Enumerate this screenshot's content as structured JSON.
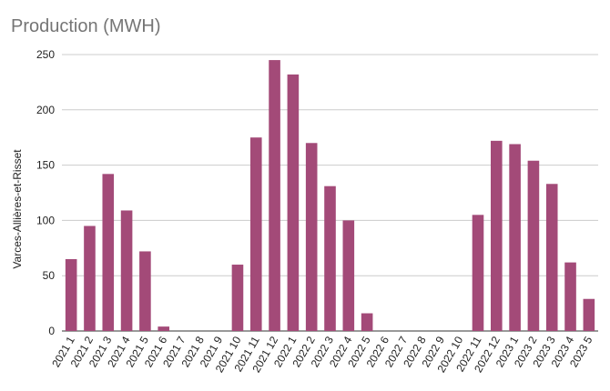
{
  "chart_data": {
    "type": "bar",
    "title": "Production (MWH)",
    "xlabel": "",
    "ylabel": "Varces-Allières-et-Risset",
    "ylim": [
      0,
      250
    ],
    "yticks": [
      0,
      50,
      100,
      150,
      200,
      250
    ],
    "grid": true,
    "bar_color": "#a34a78",
    "categories": [
      "2021 1",
      "2021 2",
      "2021 3",
      "2021 4",
      "2021 5",
      "2021 6",
      "2021 7",
      "2021 8",
      "2021 9",
      "2021 10",
      "2021 11",
      "2021 12",
      "2022 1",
      "2022 2",
      "2022 3",
      "2022 4",
      "2022 5",
      "2022 6",
      "2022 7",
      "2022 8",
      "2022 9",
      "2022 10",
      "2022 11",
      "2022 12",
      "2023 1",
      "2023 2",
      "2023 3",
      "2023 4",
      "2023 5"
    ],
    "values": [
      65,
      95,
      142,
      109,
      72,
      4,
      0,
      0,
      0,
      60,
      175,
      245,
      232,
      170,
      131,
      100,
      16,
      0,
      0,
      0,
      0,
      0,
      105,
      172,
      169,
      154,
      133,
      62,
      29
    ]
  }
}
